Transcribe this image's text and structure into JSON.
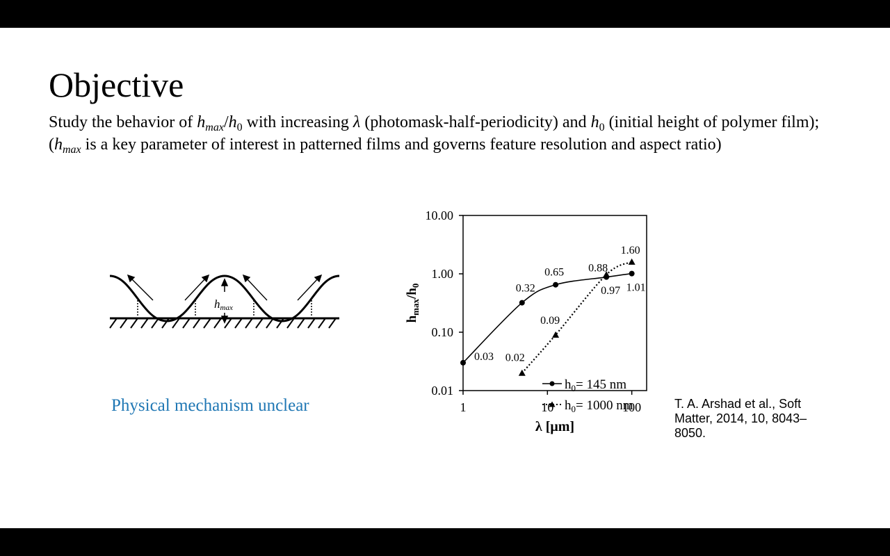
{
  "slide": {
    "title": "Objective",
    "objective": {
      "p1_a": "Study the behavior of ",
      "p1_var1": "h",
      "p1_var1_sub": "max",
      "p1_slash": "/",
      "p1_var2": "h",
      "p1_var2_sub": "0",
      "p1_b": " with increasing ",
      "p1_lambda": "λ",
      "p1_c": " (photomask-half-periodicity) and ",
      "p1_var3": "h",
      "p1_var3_sub": "0",
      "p1_d": " (initial height of polymer film);",
      "p2_a": "(",
      "p2_var": "h",
      "p2_var_sub": "max",
      "p2_b": " is a key parameter of interest in patterned films and governs feature resolution and aspect ratio)"
    },
    "mechanism_caption": "Physical mechanism unclear",
    "diagram_label_h": "h",
    "diagram_label_sub": "max",
    "citation": "T. A. Arshad et al., Soft Matter, 2014, 10, 8043–8050."
  },
  "chart_data": {
    "type": "line",
    "x_scale": "log",
    "y_scale": "log",
    "xlim": [
      1,
      150
    ],
    "ylim": [
      0.01,
      10
    ],
    "xticks": [
      1,
      10,
      100
    ],
    "xtick_labels": [
      "1",
      "10",
      "100"
    ],
    "yticks": [
      0.01,
      0.1,
      1,
      10
    ],
    "ytick_labels": [
      "0.01",
      "0.10",
      "1.00",
      "10.00"
    ],
    "xlabel": "λ [μm]",
    "ylabel_main": "h",
    "ylabel_sub1": "max",
    "ylabel_slash": "/h",
    "ylabel_sub2": "0",
    "grid": false,
    "legend_position": "bottom-right",
    "series": [
      {
        "name_main": "h",
        "name_sub": "0",
        "name_rest": "= 145 nm",
        "marker": "circle",
        "line_style": "solid",
        "x": [
          1,
          5,
          12.5,
          50,
          100
        ],
        "y": [
          0.03,
          0.32,
          0.65,
          0.88,
          1.01
        ],
        "labels": [
          "0.03",
          "0.32",
          "0.65",
          "0.88",
          "1.01"
        ]
      },
      {
        "name_main": "h",
        "name_sub": "0",
        "name_rest": "= 1000 nm",
        "marker": "triangle",
        "line_style": "dotted",
        "x": [
          5,
          12.5,
          50,
          100
        ],
        "y": [
          0.02,
          0.09,
          0.97,
          1.6
        ],
        "labels": [
          "0.02",
          "0.09",
          "0.97",
          "1.60"
        ]
      }
    ]
  }
}
